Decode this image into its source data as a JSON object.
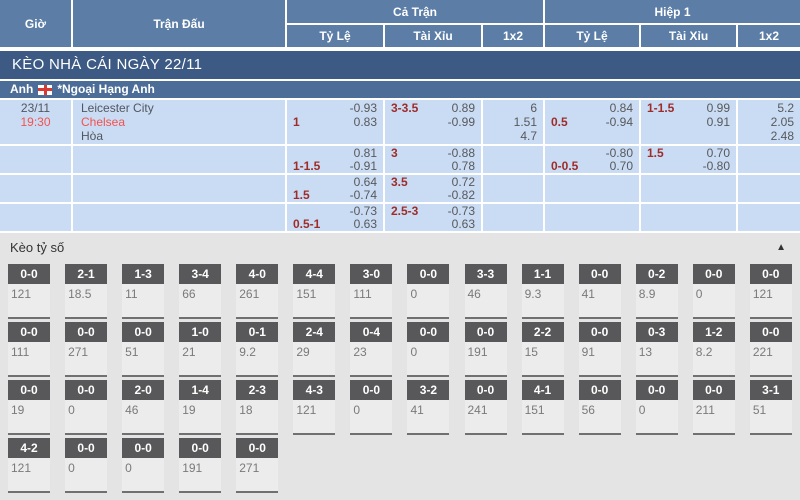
{
  "header": {
    "time": "Giờ",
    "match": "Trận Đấu",
    "full_match": "Cả Trận",
    "first_half": "Hiệp 1",
    "sub": [
      "Tỷ Lệ",
      "Tài Xỉu",
      "1x2"
    ]
  },
  "section_banner": "KÈO NHÀ CÁI NGÀY 22/11",
  "league_banner": {
    "country": "Anh",
    "flag_icon": "england-flag",
    "league": "*Ngoại Hạng Anh"
  },
  "match": {
    "date": "23/11",
    "time": "19:30",
    "teams": [
      "Leicester City",
      "Chelsea",
      "Hòa"
    ]
  },
  "odds_rows": [
    {
      "ft_hdp": [
        [
          "",
          "-0.93"
        ],
        [
          "1",
          "0.83"
        ]
      ],
      "ft_ou": [
        [
          "3-3.5",
          "0.89"
        ],
        [
          "",
          "-0.99"
        ]
      ],
      "ft_1x2": [
        "6",
        "1.51",
        "4.7"
      ],
      "h1_hdp": [
        [
          "",
          "0.84"
        ],
        [
          "0.5",
          "-0.94"
        ]
      ],
      "h1_ou": [
        [
          "1-1.5",
          "0.99"
        ],
        [
          "",
          "0.91"
        ]
      ],
      "h1_1x2": [
        "5.2",
        "2.05",
        "2.48"
      ]
    },
    {
      "ft_hdp": [
        [
          "",
          "0.81"
        ],
        [
          "1-1.5",
          "-0.91"
        ]
      ],
      "ft_ou": [
        [
          "3",
          "-0.88"
        ],
        [
          "",
          "0.78"
        ]
      ],
      "ft_1x2": [],
      "h1_hdp": [
        [
          "",
          "-0.80"
        ],
        [
          "0-0.5",
          "0.70"
        ]
      ],
      "h1_ou": [
        [
          "1.5",
          "0.70"
        ],
        [
          "",
          "-0.80"
        ]
      ],
      "h1_1x2": []
    },
    {
      "ft_hdp": [
        [
          "",
          "0.64"
        ],
        [
          "1.5",
          "-0.74"
        ]
      ],
      "ft_ou": [
        [
          "3.5",
          "0.72"
        ],
        [
          "",
          "-0.82"
        ]
      ],
      "ft_1x2": [],
      "h1_hdp": [],
      "h1_ou": [],
      "h1_1x2": []
    },
    {
      "ft_hdp": [
        [
          "",
          "-0.73"
        ],
        [
          "0.5-1",
          "0.63"
        ]
      ],
      "ft_ou": [
        [
          "2.5-3",
          "-0.73"
        ],
        [
          "",
          "0.63"
        ]
      ],
      "ft_1x2": [],
      "h1_hdp": [],
      "h1_ou": [],
      "h1_1x2": []
    }
  ],
  "score_section": {
    "title": "Kèo tỷ số",
    "collapse_icon": "▲",
    "rows": [
      [
        {
          "score": "0-0",
          "odds": "121"
        },
        {
          "score": "2-1",
          "odds": "18.5"
        },
        {
          "score": "1-3",
          "odds": "11"
        },
        {
          "score": "3-4",
          "odds": "66"
        },
        {
          "score": "4-0",
          "odds": "261"
        },
        {
          "score": "4-4",
          "odds": "151"
        },
        {
          "score": "3-0",
          "odds": "111"
        },
        {
          "score": "0-0",
          "odds": "0"
        },
        {
          "score": "3-3",
          "odds": "46"
        },
        {
          "score": "1-1",
          "odds": "9.3"
        },
        {
          "score": "0-0",
          "odds": "41"
        },
        {
          "score": "0-2",
          "odds": "8.9"
        },
        {
          "score": "0-0",
          "odds": "0"
        },
        {
          "score": "0-0",
          "odds": "121"
        }
      ],
      [
        {
          "score": "0-0",
          "odds": "111"
        },
        {
          "score": "0-0",
          "odds": "271"
        },
        {
          "score": "0-0",
          "odds": "51"
        },
        {
          "score": "1-0",
          "odds": "21"
        },
        {
          "score": "0-1",
          "odds": "9.2"
        },
        {
          "score": "2-4",
          "odds": "29"
        },
        {
          "score": "0-4",
          "odds": "23"
        },
        {
          "score": "0-0",
          "odds": "0"
        },
        {
          "score": "0-0",
          "odds": "191"
        },
        {
          "score": "2-2",
          "odds": "15"
        },
        {
          "score": "0-0",
          "odds": "91"
        },
        {
          "score": "0-3",
          "odds": "13"
        },
        {
          "score": "1-2",
          "odds": "8.2"
        },
        {
          "score": "0-0",
          "odds": "221"
        }
      ],
      [
        {
          "score": "0-0",
          "odds": "19"
        },
        {
          "score": "0-0",
          "odds": "0"
        },
        {
          "score": "2-0",
          "odds": "46"
        },
        {
          "score": "1-4",
          "odds": "19"
        },
        {
          "score": "2-3",
          "odds": "18"
        },
        {
          "score": "4-3",
          "odds": "121"
        },
        {
          "score": "0-0",
          "odds": "0"
        },
        {
          "score": "3-2",
          "odds": "41"
        },
        {
          "score": "0-0",
          "odds": "241"
        },
        {
          "score": "4-1",
          "odds": "151"
        },
        {
          "score": "0-0",
          "odds": "56"
        },
        {
          "score": "0-0",
          "odds": "0"
        },
        {
          "score": "0-0",
          "odds": "211"
        },
        {
          "score": "3-1",
          "odds": "51"
        }
      ],
      [
        {
          "score": "4-2",
          "odds": "121"
        },
        {
          "score": "0-0",
          "odds": "0"
        },
        {
          "score": "0-0",
          "odds": "0"
        },
        {
          "score": "0-0",
          "odds": "191"
        },
        {
          "score": "0-0",
          "odds": "271"
        }
      ]
    ]
  },
  "colors": {
    "header_blue": "#5b7da6",
    "banner_navy": "#3c5a84",
    "league_blue": "#4c6d97",
    "row_blue": "#c9dcf4",
    "handicap_red": "#9e2c28",
    "odds_gray": "#58585a",
    "team_red": "#f4524d",
    "tile_dark": "#58585a",
    "section_bg": "#e4e4e4"
  }
}
